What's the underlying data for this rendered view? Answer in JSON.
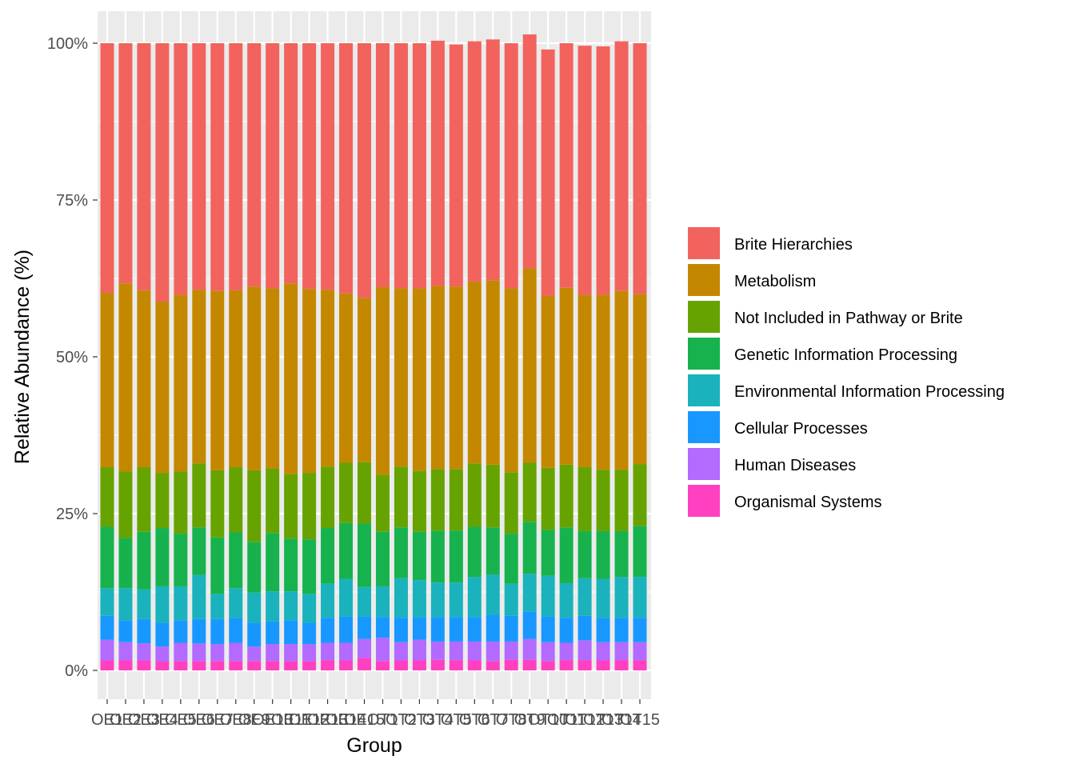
{
  "chart_data": {
    "type": "bar",
    "stacked": true,
    "percent": true,
    "xlabel": "Group",
    "ylabel": "Relative Abundance (%)",
    "ylim": [
      0,
      100
    ],
    "yticks": [
      "0%",
      "25%",
      "50%",
      "75%",
      "100%"
    ],
    "legend_position": "right",
    "grid": true,
    "categories": [
      "OE1",
      "OE2",
      "OE3",
      "OE4",
      "OE5",
      "OE6",
      "OE7",
      "OE8",
      "OE9",
      "OE10",
      "OE11",
      "OE12",
      "OE13",
      "OE14",
      "OE15",
      "OT1",
      "OT2",
      "OT3",
      "OT4",
      "OT5",
      "OT6",
      "OT7",
      "OT8",
      "OT9",
      "OT10",
      "OT11",
      "OT12",
      "OT13",
      "OT14",
      "OT15"
    ],
    "series": [
      {
        "name": "Organismal Systems",
        "color": "#FF40C0",
        "values": [
          1.6,
          1.6,
          1.6,
          1.4,
          1.5,
          1.5,
          1.5,
          1.5,
          1.5,
          1.5,
          1.5,
          1.5,
          1.6,
          1.6,
          2.0,
          1.5,
          1.6,
          1.6,
          1.7,
          1.6,
          1.6,
          1.5,
          1.7,
          1.7,
          1.5,
          1.6,
          1.6,
          1.6,
          1.6,
          1.6
        ]
      },
      {
        "name": "Human Diseases",
        "color": "#B36AFF",
        "values": [
          3.3,
          2.9,
          2.7,
          2.4,
          2.9,
          2.8,
          2.7,
          2.9,
          2.3,
          2.7,
          2.7,
          2.7,
          2.8,
          2.8,
          3.0,
          3.7,
          2.9,
          3.3,
          2.9,
          3.0,
          3.0,
          3.1,
          2.9,
          3.3,
          3.0,
          2.8,
          3.2,
          2.9,
          2.9,
          2.9
        ]
      },
      {
        "name": "Cellular Processes",
        "color": "#1898FF",
        "values": [
          3.8,
          3.5,
          3.9,
          3.8,
          3.6,
          3.9,
          4.0,
          3.9,
          3.8,
          3.6,
          3.8,
          3.4,
          4.0,
          4.2,
          3.6,
          3.3,
          3.9,
          3.6,
          3.9,
          3.9,
          3.9,
          4.2,
          4.1,
          4.4,
          4.1,
          4.0,
          3.9,
          3.8,
          3.9,
          3.9
        ]
      },
      {
        "name": "Environmental Information Processing",
        "color": "#1AB2BC",
        "values": [
          4.4,
          5.1,
          4.7,
          5.8,
          5.4,
          7.0,
          4.0,
          4.8,
          4.8,
          4.8,
          4.6,
          4.6,
          5.4,
          6.0,
          4.7,
          4.9,
          6.3,
          5.9,
          5.5,
          5.5,
          6.4,
          6.5,
          5.1,
          6.0,
          6.5,
          5.5,
          6.0,
          6.3,
          6.5,
          6.5
        ]
      },
      {
        "name": "Genetic Information Processing",
        "color": "#17B24E",
        "values": [
          9.8,
          8.0,
          9.2,
          9.3,
          8.4,
          7.6,
          9.0,
          8.9,
          8.1,
          9.3,
          8.4,
          8.7,
          8.9,
          8.9,
          10.1,
          8.7,
          8.1,
          7.7,
          8.3,
          8.3,
          8.0,
          7.5,
          8.0,
          8.3,
          7.3,
          8.9,
          7.5,
          7.6,
          7.3,
          8.1
        ]
      },
      {
        "name": "Not Included in Pathway or Brite",
        "color": "#66A300",
        "values": [
          9.5,
          10.6,
          10.3,
          8.8,
          9.9,
          10.2,
          10.7,
          10.4,
          11.4,
          10.3,
          10.3,
          10.6,
          9.8,
          9.6,
          9.8,
          9.1,
          9.7,
          9.7,
          9.8,
          9.8,
          10.1,
          10.0,
          9.8,
          9.4,
          9.9,
          10.0,
          10.2,
          9.8,
          9.8,
          9.9
        ]
      },
      {
        "name": "Metabolism",
        "color": "#C48800",
        "values": [
          27.8,
          30.0,
          28.2,
          27.3,
          28.2,
          27.7,
          28.6,
          28.2,
          29.3,
          28.7,
          30.4,
          29.3,
          28.2,
          27.0,
          26.2,
          29.9,
          28.4,
          29.1,
          29.2,
          29.1,
          29.0,
          29.4,
          29.3,
          31.0,
          27.4,
          28.2,
          27.5,
          27.9,
          28.5,
          27.1
        ]
      },
      {
        "name": "Brite Hierarchies",
        "color": "#F2635E",
        "values": [
          39.8,
          38.3,
          39.4,
          41.2,
          40.1,
          39.3,
          39.5,
          39.4,
          38.8,
          39.1,
          38.3,
          39.2,
          39.3,
          39.9,
          40.6,
          38.9,
          39.1,
          39.1,
          39.1,
          38.6,
          38.3,
          38.4,
          39.1,
          37.3,
          39.3,
          39.0,
          39.7,
          39.6,
          39.8,
          40.0
        ]
      }
    ],
    "legend_order": [
      "Brite Hierarchies",
      "Metabolism",
      "Not Included in Pathway or Brite",
      "Genetic Information Processing",
      "Environmental Information Processing",
      "Cellular Processes",
      "Human Diseases",
      "Organismal Systems"
    ]
  }
}
